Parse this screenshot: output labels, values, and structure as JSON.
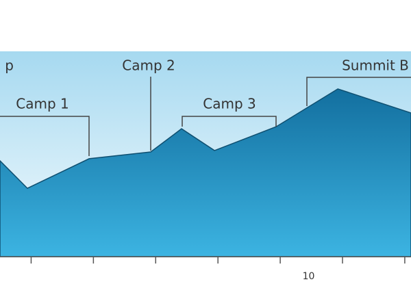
{
  "chart_data": {
    "type": "area",
    "x": [
      0,
      0.88,
      2.86,
      4.84,
      5.83,
      6.89,
      8.87,
      10.85,
      13.2
    ],
    "values": [
      46.7,
      33.3,
      47.7,
      51,
      62.3,
      51.7,
      63.3,
      81.7,
      70
    ],
    "xlim": [
      0,
      13.2
    ],
    "ylim": [
      0,
      100
    ],
    "xticks": [
      10
    ],
    "xminorticks": [
      1,
      3,
      5,
      7,
      9,
      11,
      13
    ],
    "color": "#1b86b8",
    "annotations": [
      "p",
      "Camp 1",
      "Camp 2",
      "Camp 3",
      "Summit B"
    ]
  }
}
